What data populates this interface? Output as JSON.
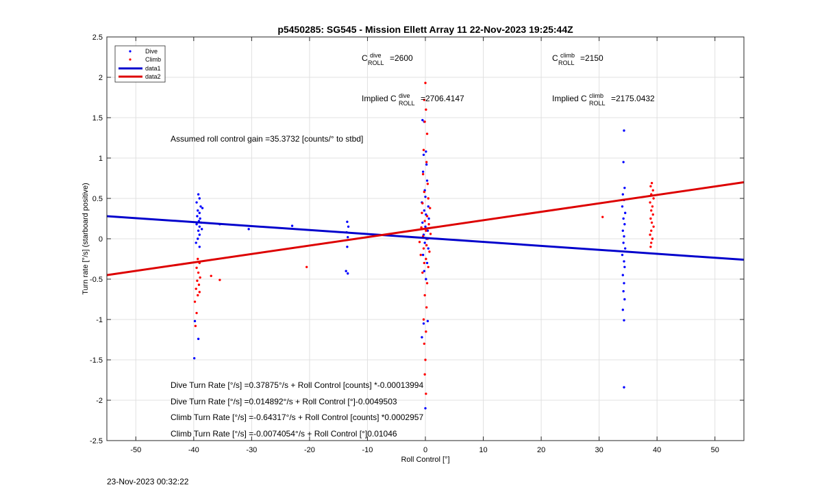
{
  "chart_data": {
    "type": "scatter",
    "title": "p5450285: SG545 - Mission Ellett Array 11 22-Nov-2023 19:25:44Z",
    "xlabel": "Roll Control [°]",
    "ylabel": "Turn rate [°/s] (starboard positive)",
    "xlim": [
      -55,
      55
    ],
    "ylim": [
      -2.5,
      2.5
    ],
    "xticks": [
      -50,
      -40,
      -30,
      -20,
      -10,
      0,
      10,
      20,
      30,
      40,
      50
    ],
    "yticks": [
      -2.5,
      -2,
      -1.5,
      -1,
      -0.5,
      0,
      0.5,
      1,
      1.5,
      2,
      2.5
    ],
    "grid": true,
    "legend_position": "top-left",
    "legend": [
      "Dive",
      "Climb",
      "data1",
      "data2"
    ],
    "series": [
      {
        "name": "Dive",
        "kind": "scatter",
        "color": "#0000ff",
        "points": [
          [
            -39.2,
            0.55
          ],
          [
            -39.0,
            0.5
          ],
          [
            -39.5,
            0.45
          ],
          [
            -38.8,
            0.4
          ],
          [
            -39.3,
            0.35
          ],
          [
            -38.5,
            0.38
          ],
          [
            -39.0,
            0.32
          ],
          [
            -39.4,
            0.28
          ],
          [
            -38.9,
            0.25
          ],
          [
            -39.1,
            0.22
          ],
          [
            -38.7,
            0.2
          ],
          [
            -39.5,
            0.18
          ],
          [
            -39.0,
            0.15
          ],
          [
            -38.6,
            0.12
          ],
          [
            -39.2,
            0.1
          ],
          [
            -39.0,
            0.05
          ],
          [
            -39.3,
            0.0
          ],
          [
            -39.6,
            -0.05
          ],
          [
            -39.0,
            -0.1
          ],
          [
            -39.8,
            -1.02
          ],
          [
            -39.2,
            -1.24
          ],
          [
            -39.9,
            -1.48
          ],
          [
            -35.5,
            0.18
          ],
          [
            -30.5,
            0.12
          ],
          [
            -23.0,
            0.16
          ],
          [
            -13.5,
            0.21
          ],
          [
            -13.3,
            0.15
          ],
          [
            -13.6,
            0.08
          ],
          [
            -13.4,
            0.02
          ],
          [
            -13.5,
            -0.1
          ],
          [
            -13.7,
            -0.4
          ],
          [
            -13.4,
            -0.43
          ],
          [
            -0.5,
            1.47
          ],
          [
            -0.2,
            1.45
          ],
          [
            0.1,
            1.08
          ],
          [
            -0.3,
            1.04
          ],
          [
            0.2,
            0.92
          ],
          [
            -0.4,
            0.83
          ],
          [
            0.3,
            0.72
          ],
          [
            -0.1,
            0.6
          ],
          [
            0.0,
            0.52
          ],
          [
            -0.6,
            0.45
          ],
          [
            0.5,
            0.4
          ],
          [
            -0.2,
            0.35
          ],
          [
            0.1,
            0.3
          ],
          [
            0.6,
            0.25
          ],
          [
            -0.5,
            0.2
          ],
          [
            0.0,
            0.15
          ],
          [
            0.4,
            0.1
          ],
          [
            -0.3,
            0.05
          ],
          [
            0.2,
            0.0
          ],
          [
            -0.1,
            -0.05
          ],
          [
            0.5,
            -0.12
          ],
          [
            -0.4,
            -0.2
          ],
          [
            0.3,
            -0.3
          ],
          [
            -0.2,
            -0.4
          ],
          [
            0.1,
            -0.5
          ],
          [
            -0.3,
            -1.05
          ],
          [
            -0.6,
            -1.22
          ],
          [
            0.4,
            -1.02
          ],
          [
            0.0,
            -2.1
          ],
          [
            34.3,
            1.34
          ],
          [
            34.2,
            0.95
          ],
          [
            34.4,
            0.63
          ],
          [
            34.1,
            0.55
          ],
          [
            34.3,
            0.48
          ],
          [
            34.0,
            0.4
          ],
          [
            34.5,
            0.32
          ],
          [
            34.2,
            0.25
          ],
          [
            34.4,
            0.18
          ],
          [
            34.1,
            0.1
          ],
          [
            34.3,
            0.03
          ],
          [
            34.2,
            -0.05
          ],
          [
            34.5,
            -0.12
          ],
          [
            34.0,
            -0.2
          ],
          [
            34.3,
            -0.28
          ],
          [
            34.4,
            -0.35
          ],
          [
            34.1,
            -0.45
          ],
          [
            34.3,
            -0.55
          ],
          [
            34.2,
            -0.65
          ],
          [
            34.4,
            -0.75
          ],
          [
            34.1,
            -0.88
          ],
          [
            34.3,
            -1.01
          ],
          [
            34.3,
            -1.84
          ]
        ]
      },
      {
        "name": "Climb",
        "kind": "scatter",
        "color": "#ff0000",
        "points": [
          [
            -39.3,
            -0.25
          ],
          [
            -39.0,
            -0.3
          ],
          [
            -39.5,
            -0.36
          ],
          [
            -39.2,
            -0.42
          ],
          [
            -38.9,
            -0.48
          ],
          [
            -39.4,
            -0.52
          ],
          [
            -39.1,
            -0.57
          ],
          [
            -39.6,
            -0.62
          ],
          [
            -39.0,
            -0.66
          ],
          [
            -39.3,
            -0.7
          ],
          [
            -39.8,
            -0.78
          ],
          [
            -39.5,
            -0.92
          ],
          [
            -39.7,
            -1.08
          ],
          [
            -37.0,
            -0.46
          ],
          [
            -35.5,
            -0.51
          ],
          [
            -20.5,
            -0.35
          ],
          [
            0.0,
            1.93
          ],
          [
            -0.2,
            1.72
          ],
          [
            0.1,
            1.6
          ],
          [
            -0.1,
            1.45
          ],
          [
            0.3,
            1.3
          ],
          [
            -0.3,
            1.1
          ],
          [
            0.2,
            0.95
          ],
          [
            -0.4,
            0.8
          ],
          [
            0.4,
            0.68
          ],
          [
            -0.2,
            0.58
          ],
          [
            0.5,
            0.5
          ],
          [
            -0.5,
            0.44
          ],
          [
            0.8,
            0.38
          ],
          [
            -0.6,
            0.32
          ],
          [
            0.3,
            0.28
          ],
          [
            -0.1,
            0.22
          ],
          [
            0.6,
            0.18
          ],
          [
            -0.7,
            0.14
          ],
          [
            0.1,
            0.1
          ],
          [
            0.9,
            0.06
          ],
          [
            -0.4,
            0.03
          ],
          [
            0.4,
            0.0
          ],
          [
            -1.0,
            -0.04
          ],
          [
            0.2,
            -0.08
          ],
          [
            -0.3,
            -0.12
          ],
          [
            0.7,
            -0.16
          ],
          [
            -0.8,
            -0.2
          ],
          [
            0.1,
            -0.25
          ],
          [
            -0.2,
            -0.3
          ],
          [
            0.5,
            -0.35
          ],
          [
            -0.5,
            -0.42
          ],
          [
            0.3,
            -0.55
          ],
          [
            -0.1,
            -0.7
          ],
          [
            0.2,
            -0.85
          ],
          [
            -0.3,
            -1.0
          ],
          [
            0.1,
            -1.15
          ],
          [
            -0.2,
            -1.3
          ],
          [
            0.0,
            -1.5
          ],
          [
            -0.1,
            -1.68
          ],
          [
            0.1,
            -1.92
          ],
          [
            30.6,
            0.27
          ],
          [
            39.1,
            0.69
          ],
          [
            38.9,
            0.65
          ],
          [
            39.3,
            0.6
          ],
          [
            39.0,
            0.55
          ],
          [
            39.4,
            0.5
          ],
          [
            38.8,
            0.45
          ],
          [
            39.2,
            0.4
          ],
          [
            39.0,
            0.35
          ],
          [
            39.3,
            0.3
          ],
          [
            38.9,
            0.25
          ],
          [
            39.1,
            0.2
          ],
          [
            39.4,
            0.15
          ],
          [
            39.0,
            0.1
          ],
          [
            38.8,
            0.05
          ],
          [
            39.2,
            0.0
          ],
          [
            39.0,
            -0.05
          ],
          [
            38.9,
            -0.1
          ]
        ]
      },
      {
        "name": "data1",
        "kind": "line",
        "color": "#0000cc",
        "points": [
          [
            -55,
            0.28
          ],
          [
            55,
            -0.26
          ]
        ]
      },
      {
        "name": "data2",
        "kind": "line",
        "color": "#dd0000",
        "points": [
          [
            -55,
            -0.45
          ],
          [
            55,
            0.7
          ]
        ]
      }
    ],
    "annotations": {
      "c_dive": {
        "symbol": "C",
        "sup": "dive",
        "sub": "ROLL",
        "value": "=2600"
      },
      "c_climb": {
        "symbol": "C",
        "sup": "climb",
        "sub": "ROLL",
        "value": "=2150"
      },
      "implied_dive": {
        "prefix": "Implied C",
        "sup": "dive",
        "sub": "ROLL",
        "value": "=2706.4147"
      },
      "implied_climb": {
        "prefix": "Implied C",
        "sup": "climb",
        "sub": "ROLL",
        "value": "=2175.0432"
      },
      "gain": "Assumed roll control gain =35.3732 [counts/° to stbd]",
      "eq1": "Dive Turn Rate [°/s] =0.37875°/s + Roll Control [counts] *-0.00013994",
      "eq2": "Dive Turn Rate [°/s] =0.014892°/s + Roll Control [°]-0.0049503",
      "eq3": "Climb Turn Rate [°/s] =-0.64317°/s + Roll Control [counts] *0.0002957",
      "eq4": "Climb Turn Rate [°/s] =-0.0074054°/s + Roll Control [°]0.01046"
    }
  },
  "footer_timestamp": "23-Nov-2023 00:32:22"
}
